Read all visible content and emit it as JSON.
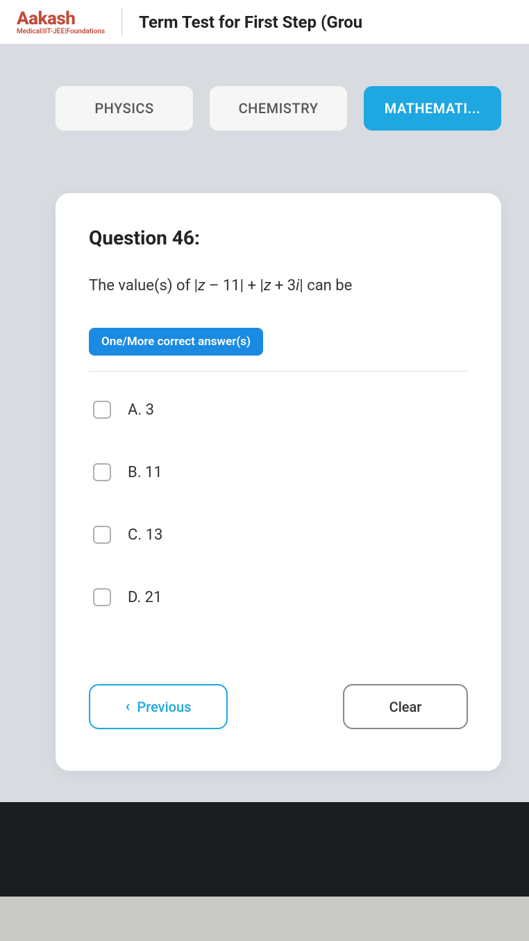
{
  "header": {
    "brand_name": "Aakash",
    "brand_tag": "Medical|IIT-JEE|Foundations",
    "test_title": "Term Test for First Step (Grou"
  },
  "tabs": [
    {
      "label": "PHYSICS",
      "active": false
    },
    {
      "label": "CHEMISTRY",
      "active": false
    },
    {
      "label": "MATHEMATI...",
      "active": true
    }
  ],
  "question": {
    "number_label": "Question 46:",
    "text_prefix": "The value(s) of |",
    "var1": "z",
    "mid1": " – 11| + |",
    "var2": "z",
    "mid2": " + 3",
    "var3": "i",
    "text_suffix": "| can be",
    "answer_mode_tag": "One/More correct answer(s)",
    "options": [
      {
        "letter": "A.",
        "value": "3"
      },
      {
        "letter": "B.",
        "value": "11"
      },
      {
        "letter": "C.",
        "value": "13"
      },
      {
        "letter": "D.",
        "value": "21"
      }
    ]
  },
  "buttons": {
    "previous": "Previous",
    "clear": "Clear"
  },
  "colors": {
    "accent": "#1ea7e1",
    "accent_dark": "#1a8ae2",
    "brand": "#c04a3a",
    "bg": "#d8dce0"
  }
}
